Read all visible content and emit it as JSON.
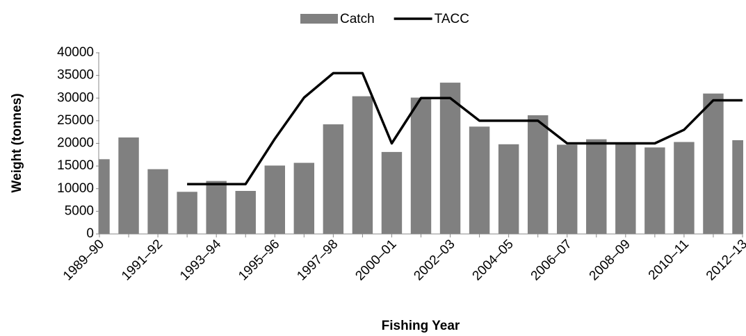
{
  "chart_data": {
    "type": "bar_line",
    "legend": "top",
    "categories": [
      "1989–90",
      null,
      "1991–92",
      null,
      "1993–94",
      null,
      "1995–96",
      null,
      "1997–98",
      null,
      "2000–01",
      null,
      "2002–03",
      null,
      "2004–05",
      null,
      "2006–07",
      null,
      "2008–09",
      null,
      "2010–11",
      null,
      "2012–13"
    ],
    "series": [
      {
        "name": "Catch",
        "type": "bar",
        "color": "#808080",
        "values": [
          16500,
          21300,
          14300,
          9300,
          11700,
          9500,
          15100,
          15700,
          24200,
          30400,
          18100,
          30100,
          33400,
          23700,
          19800,
          26200,
          19700,
          20900,
          20100,
          19100,
          20300,
          31000,
          20700
        ]
      },
      {
        "name": "TACC",
        "type": "line",
        "color": "#000000",
        "values": [
          null,
          null,
          null,
          11000,
          11000,
          11000,
          21000,
          30100,
          35500,
          35500,
          20000,
          30000,
          30000,
          25000,
          25000,
          25000,
          20000,
          20000,
          20000,
          20000,
          23000,
          29500,
          29500
        ]
      }
    ],
    "ylim": [
      0,
      40000
    ],
    "yticks": [
      0,
      5000,
      10000,
      15000,
      20000,
      25000,
      30000,
      35000,
      40000
    ],
    "ylabel": "Weight (tonnes)",
    "xlabel": "Fishing Year",
    "grid": false
  }
}
